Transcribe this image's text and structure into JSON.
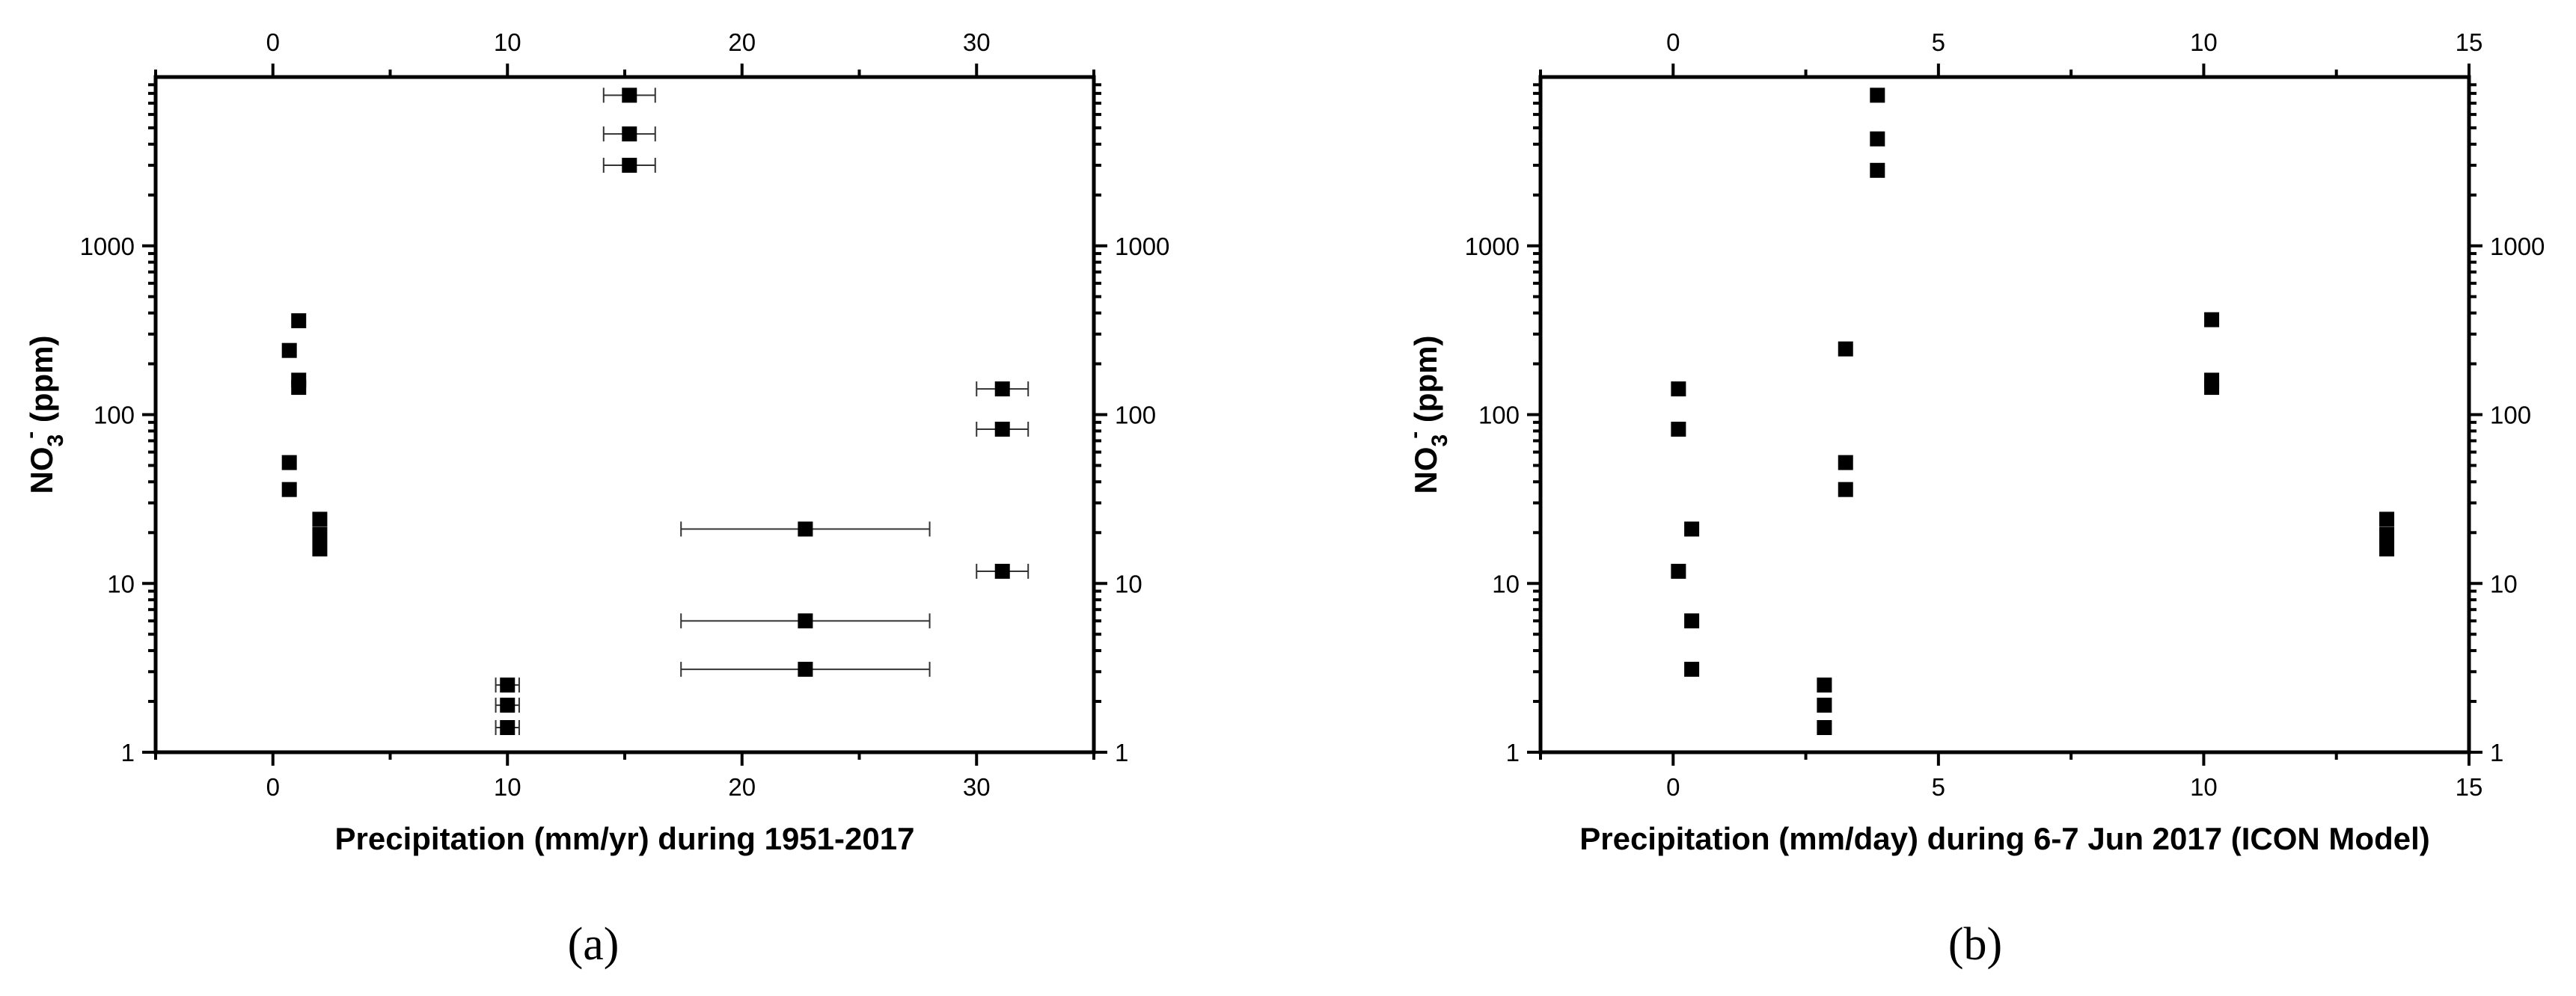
{
  "chart_data": [
    {
      "type": "scatter",
      "panel_label": "(a)",
      "xlabel": "Precipitation (mm/yr) during 1951-2017",
      "ylabel_main": "NO",
      "ylabel_sub": "3",
      "ylabel_sup": "-",
      "ylabel_tail": " (ppm)",
      "xlim": [
        -5,
        35
      ],
      "ylim": [
        1,
        10000
      ],
      "yscale": "log",
      "xticks": [
        0,
        10,
        20,
        30
      ],
      "yticks": [
        1,
        10,
        100,
        1000
      ],
      "mirror_axes": "top and right",
      "points": [
        {
          "x": 15.2,
          "y": 7800,
          "xerr": 1.1
        },
        {
          "x": 15.2,
          "y": 4600,
          "xerr": 1.1
        },
        {
          "x": 15.2,
          "y": 3000,
          "xerr": 1.1
        },
        {
          "x": 1.1,
          "y": 360,
          "xerr": 0
        },
        {
          "x": 0.7,
          "y": 240,
          "xerr": 0
        },
        {
          "x": 1.1,
          "y": 160,
          "xerr": 0
        },
        {
          "x": 1.1,
          "y": 145,
          "xerr": 0
        },
        {
          "x": 0.7,
          "y": 52,
          "xerr": 0
        },
        {
          "x": 0.7,
          "y": 36,
          "xerr": 0
        },
        {
          "x": 2.0,
          "y": 24,
          "xerr": 0
        },
        {
          "x": 2.0,
          "y": 19.5,
          "xerr": 0
        },
        {
          "x": 2.0,
          "y": 16,
          "xerr": 0
        },
        {
          "x": 31.1,
          "y": 142,
          "xerr": 1.1
        },
        {
          "x": 31.1,
          "y": 82,
          "xerr": 1.1
        },
        {
          "x": 31.1,
          "y": 11.8,
          "xerr": 1.1
        },
        {
          "x": 22.7,
          "y": 21,
          "xerr": 5.3
        },
        {
          "x": 22.7,
          "y": 6.0,
          "xerr": 5.3
        },
        {
          "x": 22.7,
          "y": 3.1,
          "xerr": 5.3
        },
        {
          "x": 10.0,
          "y": 2.5,
          "xerr": 0.5
        },
        {
          "x": 10.0,
          "y": 1.9,
          "xerr": 0.5
        },
        {
          "x": 10.0,
          "y": 1.4,
          "xerr": 0.5
        }
      ]
    },
    {
      "type": "scatter",
      "panel_label": "(b)",
      "xlabel": "Precipitation (mm/day) during 6-7 Jun 2017 (ICON Model)",
      "ylabel_main": "NO",
      "ylabel_sub": "3",
      "ylabel_sup": "-",
      "ylabel_tail": " (ppm)",
      "xlim": [
        -2.5,
        15
      ],
      "ylim": [
        1,
        10000
      ],
      "yscale": "log",
      "xticks": [
        0,
        5,
        10,
        15
      ],
      "yticks": [
        1,
        10,
        100,
        1000
      ],
      "mirror_axes": "top and right",
      "points": [
        {
          "x": 3.85,
          "y": 7800
        },
        {
          "x": 3.85,
          "y": 4300
        },
        {
          "x": 3.85,
          "y": 2800
        },
        {
          "x": 3.25,
          "y": 245
        },
        {
          "x": 3.25,
          "y": 52
        },
        {
          "x": 3.25,
          "y": 36
        },
        {
          "x": 0.1,
          "y": 142
        },
        {
          "x": 0.1,
          "y": 82
        },
        {
          "x": 0.1,
          "y": 11.8
        },
        {
          "x": 0.35,
          "y": 21
        },
        {
          "x": 0.35,
          "y": 6.0
        },
        {
          "x": 0.35,
          "y": 3.1
        },
        {
          "x": 2.85,
          "y": 2.5
        },
        {
          "x": 2.85,
          "y": 1.9
        },
        {
          "x": 2.85,
          "y": 1.4
        },
        {
          "x": 10.15,
          "y": 365
        },
        {
          "x": 10.15,
          "y": 160
        },
        {
          "x": 10.15,
          "y": 145
        },
        {
          "x": 13.45,
          "y": 24
        },
        {
          "x": 13.45,
          "y": 19.5
        },
        {
          "x": 13.45,
          "y": 16
        }
      ]
    }
  ]
}
